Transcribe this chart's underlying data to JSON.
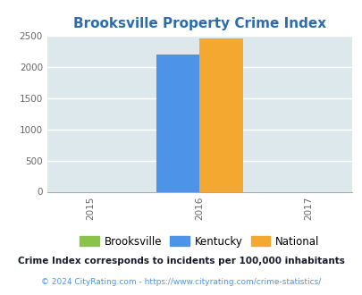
{
  "title": "Brooksville Property Crime Index",
  "title_color": "#2b6cb0",
  "kentucky_value": 2190,
  "national_value": 2450,
  "kentucky_color": "#4d94e8",
  "national_color": "#f5a830",
  "brooksville_color": "#8bc34a",
  "background_color": "#dde8ec",
  "ylim": [
    0,
    2500
  ],
  "yticks": [
    0,
    500,
    1000,
    1500,
    2000,
    2500
  ],
  "xticks": [
    2015,
    2016,
    2017
  ],
  "bar_width": 0.4,
  "x_center": 2016,
  "xlim": [
    2014.6,
    2017.4
  ],
  "legend_labels": [
    "Brooksville",
    "Kentucky",
    "National"
  ],
  "footnote1": "Crime Index corresponds to incidents per 100,000 inhabitants",
  "footnote2": "© 2024 CityRating.com - https://www.cityrating.com/crime-statistics/",
  "footnote1_color": "#1a1a2e",
  "footnote2_color": "#4d94e8",
  "title_fontsize": 11,
  "tick_fontsize": 7.5,
  "legend_fontsize": 8.5,
  "footnote1_fontsize": 7.5,
  "footnote2_fontsize": 6.5
}
